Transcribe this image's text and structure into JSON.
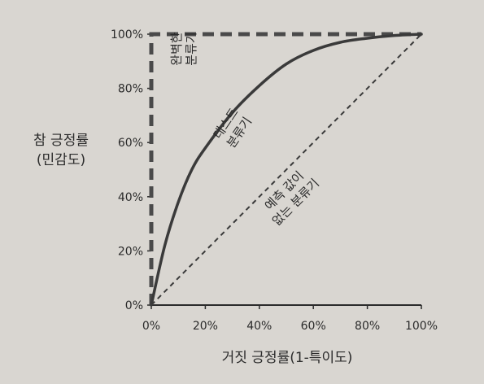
{
  "chart_data": {
    "type": "line",
    "xlabel": "거짓 긍정률(1-특이도)",
    "ylabel_lines": [
      "참 긍정률",
      "(민감도)"
    ],
    "x_ticks": [
      "0%",
      "20%",
      "40%",
      "60%",
      "80%",
      "100%"
    ],
    "y_ticks": [
      "0%",
      "20%",
      "40%",
      "60%",
      "80%",
      "100%"
    ],
    "xlim": [
      0,
      100
    ],
    "ylim": [
      0,
      100
    ],
    "series": [
      {
        "name": "완벽한 분류기",
        "style": "dashed-thick",
        "x": [
          0,
          0,
          100
        ],
        "y": [
          0,
          100,
          100
        ]
      },
      {
        "name": "테스트 분류기",
        "style": "solid",
        "x": [
          0,
          5,
          10,
          15,
          20,
          30,
          40,
          50,
          60,
          70,
          80,
          90,
          100
        ],
        "y": [
          0,
          22,
          38,
          50,
          58,
          71,
          81,
          89,
          94,
          97,
          98.5,
          99.5,
          100
        ]
      },
      {
        "name": "예측 값이 없는 분류기",
        "style": "dashed-thin",
        "x": [
          0,
          100
        ],
        "y": [
          0,
          100
        ]
      }
    ],
    "annotations": [
      {
        "lines": [
          "완벽한",
          "분류기"
        ],
        "series": 0
      },
      {
        "lines": [
          "테스트",
          "분류기"
        ],
        "series": 1
      },
      {
        "lines": [
          "예측 값이",
          "없는 분류기"
        ],
        "series": 2
      }
    ],
    "grid": false
  }
}
